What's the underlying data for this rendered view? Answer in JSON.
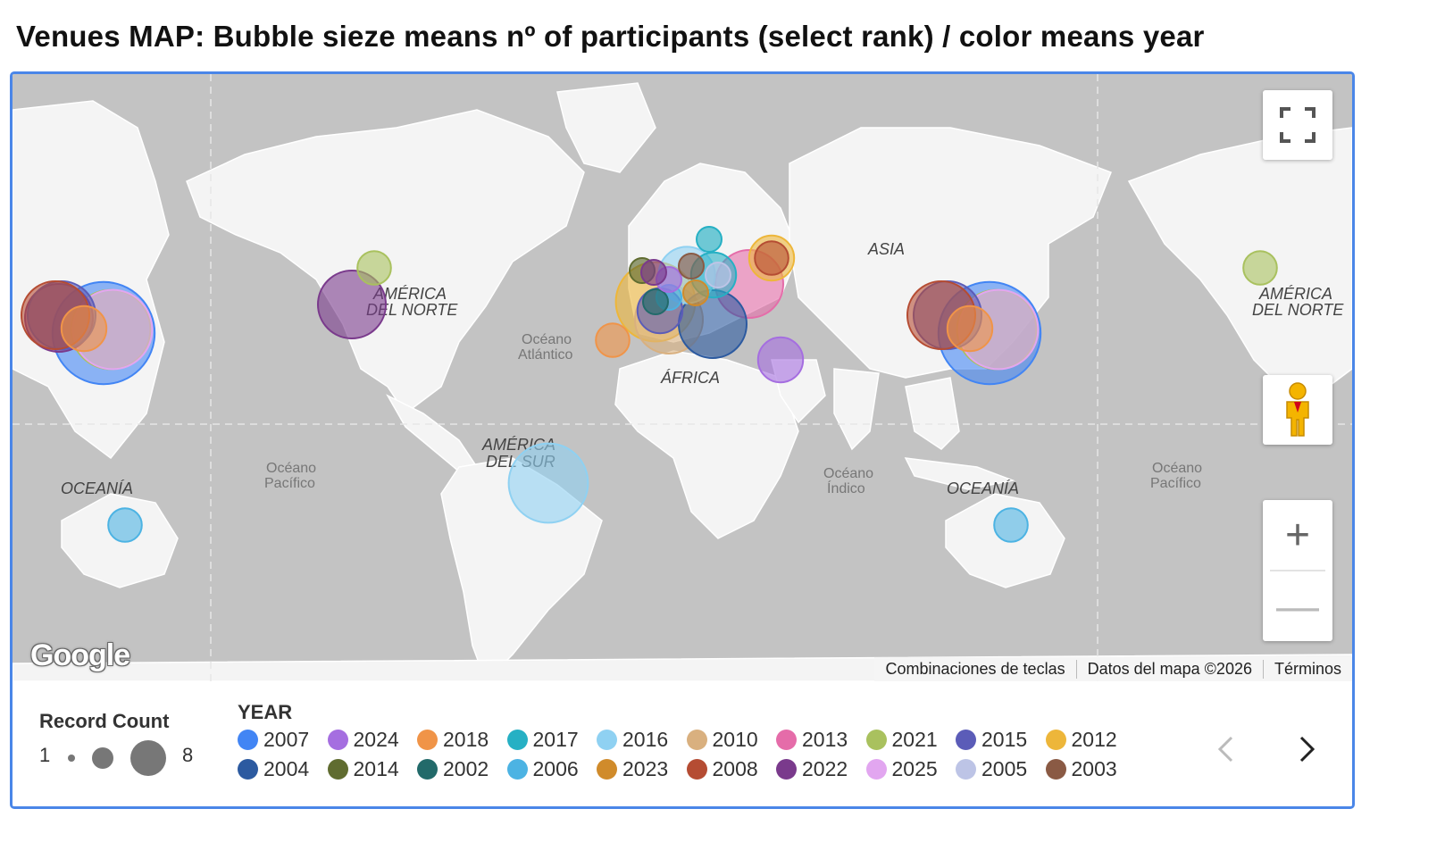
{
  "title": "Venues MAP: Bubble sieze means nº of participants (select rank) / color means year",
  "map": {
    "labels": {
      "asia": "ASIA",
      "africa": "ÁFRICA",
      "north_america_1": "AMÉRICA",
      "north_america_2": "DEL NORTE",
      "south_america_1": "AMÉRICA",
      "south_america_2": "DEL SUR",
      "oceania": "OCEANÍA",
      "atlantic_1": "Océano",
      "atlantic_2": "Atlántico",
      "pacific_1": "Océano",
      "pacific_2": "Pacífico",
      "indian_1": "Océano",
      "indian_2": "Índico"
    },
    "attribution": {
      "shortcuts": "Combinaciones de teclas",
      "data": "Datos del mapa ©2026",
      "terms": "Términos"
    },
    "logo": "Google",
    "controls": {
      "fullscreen_icon": "fullscreen-icon",
      "pegman_icon": "pegman-icon",
      "zoom_in": "+",
      "zoom_out": "—"
    }
  },
  "legend": {
    "size_title": "Record Count",
    "size_min": "1",
    "size_max": "8",
    "year_title": "YEAR",
    "years": [
      {
        "label": "2007",
        "color": "#4285f4"
      },
      {
        "label": "2024",
        "color": "#a56ee0"
      },
      {
        "label": "2018",
        "color": "#f09448"
      },
      {
        "label": "2017",
        "color": "#26b0c4"
      },
      {
        "label": "2016",
        "color": "#8fd1f2"
      },
      {
        "label": "2010",
        "color": "#d9b07f"
      },
      {
        "label": "2013",
        "color": "#e56ca9"
      },
      {
        "label": "2021",
        "color": "#a9c15e"
      },
      {
        "label": "2015",
        "color": "#5b5cb8"
      },
      {
        "label": "2012",
        "color": "#edb63a"
      },
      {
        "label": "2004",
        "color": "#2c5aa0"
      },
      {
        "label": "2014",
        "color": "#606c30"
      },
      {
        "label": "2002",
        "color": "#226a6a"
      },
      {
        "label": "2006",
        "color": "#4cb3e3"
      },
      {
        "label": "2023",
        "color": "#d08b2b"
      },
      {
        "label": "2008",
        "color": "#b54c33"
      },
      {
        "label": "2022",
        "color": "#7a3a8c"
      },
      {
        "label": "2025",
        "color": "#e2a6f0"
      },
      {
        "label": "2005",
        "color": "#bdc4e6"
      },
      {
        "label": "2003",
        "color": "#8a5a44"
      }
    ],
    "prev_icon": "chevron-left-icon",
    "next_icon": "chevron-right-icon"
  },
  "chart_data": {
    "type": "scatter",
    "title": "Venues MAP: Bubble sieze means nº of participants (select rank) / color means year",
    "size_encoding": "Record Count",
    "size_range": [
      1,
      8
    ],
    "color_encoding": "YEAR",
    "categories": [
      "2007",
      "2024",
      "2018",
      "2017",
      "2016",
      "2010",
      "2013",
      "2021",
      "2015",
      "2012",
      "2004",
      "2014",
      "2002",
      "2006",
      "2023",
      "2008",
      "2022",
      "2025",
      "2005",
      "2003"
    ],
    "points": [
      {
        "region": "Western North America",
        "year": "2022",
        "count": 5
      },
      {
        "region": "North America (Pacific Northwest)",
        "year": "2021",
        "count": 2
      },
      {
        "region": "East Asia",
        "year": "2007",
        "count": 8
      },
      {
        "region": "East Asia",
        "year": "2021",
        "count": 6
      },
      {
        "region": "East Asia",
        "year": "2025",
        "count": 6
      },
      {
        "region": "East Asia",
        "year": "2015",
        "count": 5
      },
      {
        "region": "East Asia",
        "year": "2008",
        "count": 5
      },
      {
        "region": "East Asia",
        "year": "2018",
        "count": 3
      },
      {
        "region": "Europe",
        "year": "2012",
        "count": 6
      },
      {
        "region": "Europe",
        "year": "2013",
        "count": 5
      },
      {
        "region": "Europe",
        "year": "2010",
        "count": 5
      },
      {
        "region": "Europe",
        "year": "2016",
        "count": 4
      },
      {
        "region": "Europe",
        "year": "2015",
        "count": 3
      },
      {
        "region": "Europe",
        "year": "2017",
        "count": 3
      },
      {
        "region": "Eastern Mediterranean",
        "year": "2004",
        "count": 5
      },
      {
        "region": "Eastern Europe",
        "year": "2012",
        "count": 3
      },
      {
        "region": "Eastern Europe",
        "year": "2008",
        "count": 2
      },
      {
        "region": "Middle East",
        "year": "2024",
        "count": 3
      },
      {
        "region": "Canary Islands",
        "year": "2018",
        "count": 2
      },
      {
        "region": "South America",
        "year": "2016",
        "count": 6
      },
      {
        "region": "Oceania",
        "year": "2006",
        "count": 2
      }
    ]
  }
}
